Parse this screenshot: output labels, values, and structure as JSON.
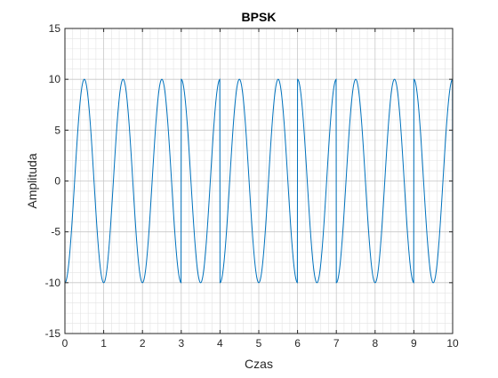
{
  "chart_data": {
    "type": "line",
    "title": "BPSK",
    "xlabel": "Czas",
    "ylabel": "Amplituda",
    "xlim": [
      0,
      10
    ],
    "ylim": [
      -15,
      15
    ],
    "xticks": [
      0,
      1,
      2,
      3,
      4,
      5,
      6,
      7,
      8,
      9,
      10
    ],
    "xtick_labels": [
      "0",
      "1",
      "2",
      "3",
      "4",
      "5",
      "6",
      "7",
      "8",
      "9",
      "10"
    ],
    "yticks": [
      -15,
      -10,
      -5,
      0,
      5,
      10,
      15
    ],
    "ytick_labels": [
      "-15",
      "-10",
      "-5",
      "0",
      "5",
      "10",
      "15"
    ],
    "grid": true,
    "minor_grid": true,
    "box": true,
    "series": [
      {
        "color": "#0072BD",
        "amplitude": 10,
        "carrier_cycles_per_bit": 1,
        "bit_duration": 1,
        "bits": [
          1,
          1,
          1,
          0,
          1,
          1,
          0,
          1,
          1,
          0,
          1,
          0,
          1,
          1,
          1
        ]
      }
    ]
  }
}
